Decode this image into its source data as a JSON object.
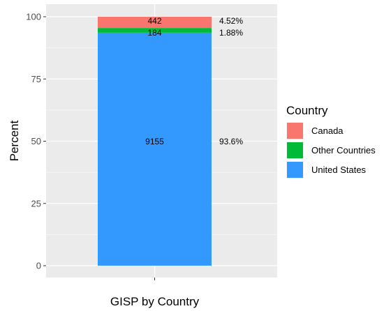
{
  "chart_data": {
    "type": "bar",
    "stacked": true,
    "categories": [
      ""
    ],
    "xlabel": "GISP by Country",
    "ylabel": "Percent",
    "ylim": [
      0,
      100
    ],
    "yticks": [
      0,
      25,
      50,
      75,
      100
    ],
    "grid": true,
    "legend": {
      "title": "Country",
      "position": "right"
    },
    "series": [
      {
        "name": "United States",
        "color": "#3399FF",
        "count": 9155,
        "percent": 93.6,
        "percent_label": "93.6%"
      },
      {
        "name": "Other Countries",
        "color": "#00BA38",
        "count": 184,
        "percent": 1.88,
        "percent_label": "1.88%"
      },
      {
        "name": "Canada",
        "color": "#F8766D",
        "count": 442,
        "percent": 4.52,
        "percent_label": "4.52%"
      }
    ],
    "legend_order": [
      "Canada",
      "Other Countries",
      "United States"
    ]
  }
}
